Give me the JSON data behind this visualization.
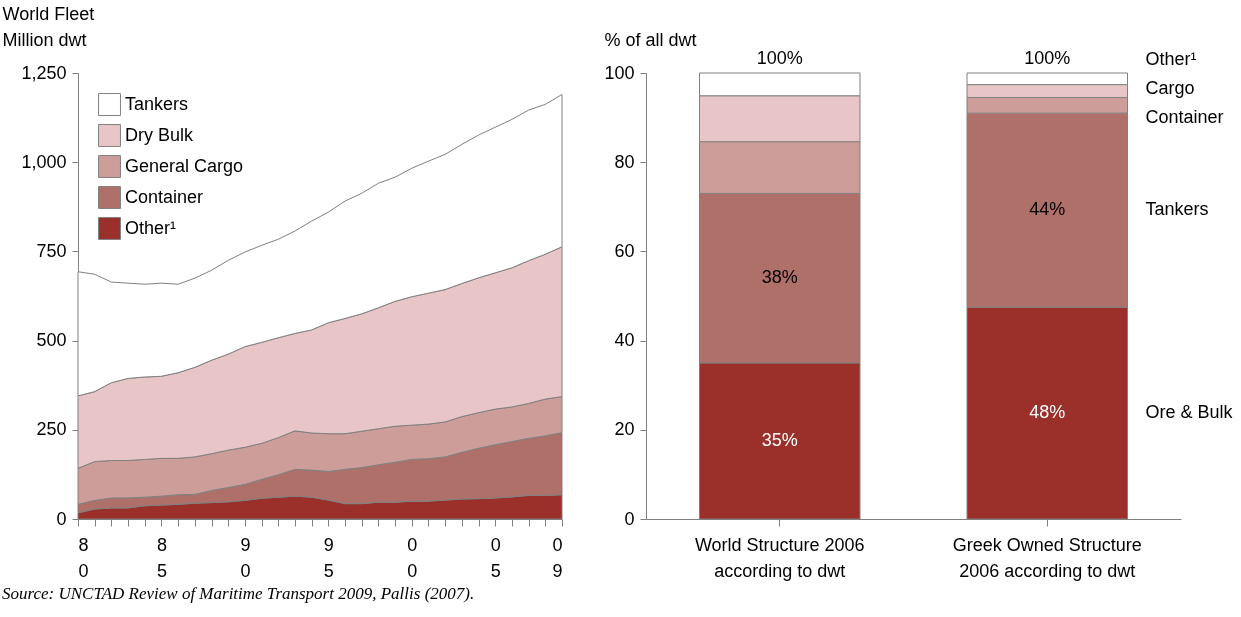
{
  "chart_data": [
    {
      "type": "area",
      "stacked": true,
      "ylabel": "World Fleet\nMillion dwt",
      "legend": "top left",
      "grid": false,
      "categories": [
        "8\n0",
        null,
        null,
        null,
        null,
        "8\n5",
        null,
        null,
        null,
        null,
        "9\n0",
        null,
        null,
        null,
        null,
        "9\n5",
        null,
        null,
        null,
        null,
        "0\n0",
        null,
        null,
        null,
        null,
        "0\n5",
        null,
        null,
        null,
        "0\n9"
      ],
      "ylim": [
        0,
        1250
      ],
      "yticks": [
        0,
        250,
        500,
        750,
        {
          "value": 1000,
          "label": "1,000"
        },
        {
          "value": 1250,
          "label": "1,250"
        }
      ],
      "series": [
        {
          "name": "Other¹",
          "color": "#9a3029",
          "values": [
            17,
            28,
            31,
            31,
            37,
            39,
            41,
            44,
            46,
            48,
            52,
            58,
            61,
            64,
            61,
            53,
            43,
            43,
            47,
            47,
            50,
            50,
            53,
            56,
            57,
            59,
            62,
            66,
            66,
            68
          ]
        },
        {
          "name": "Container",
          "color": "#b0706a",
          "values": [
            24,
            24,
            28,
            28,
            24,
            25,
            27,
            25,
            34,
            40,
            45,
            53,
            63,
            75,
            76,
            80,
            96,
            101,
            105,
            112,
            117,
            119,
            121,
            131,
            141,
            149,
            155,
            160,
            167,
            174
          ]
        },
        {
          "name": "General Cargo",
          "color": "#cd9d9a",
          "values": [
            101,
            109,
            105,
            105,
            106,
            106,
            102,
            105,
            103,
            105,
            104,
            101,
            104,
            108,
            104,
            106,
            100,
            102,
            101,
            101,
            96,
            97,
            98,
            100,
            100,
            100,
            97,
            98,
            103,
            101
          ]
        },
        {
          "name": "Dry Bulk",
          "color": "#e8c6c8",
          "values": [
            203,
            196,
            218,
            230,
            231,
            230,
            240,
            251,
            262,
            269,
            282,
            283,
            280,
            273,
            289,
            311,
            323,
            329,
            339,
            350,
            360,
            367,
            371,
            373,
            378,
            382,
            390,
            400,
            406,
            420
          ]
        },
        {
          "name": "Tankers",
          "color": "#ffffff",
          "values": [
            348,
            329,
            282,
            267,
            260,
            261,
            248,
            250,
            252,
            263,
            265,
            272,
            276,
            287,
            305,
            310,
            329,
            338,
            349,
            348,
            360,
            370,
            379,
            390,
            400,
            408,
            416,
            422,
            420,
            427
          ]
        }
      ],
      "annotations": [
        "Source: UNCTAD Review of Maritime Transport 2009, Pallis (2007)."
      ]
    },
    {
      "type": "bar",
      "stacked": true,
      "ylabel": "% of all dwt",
      "grid": false,
      "legend": false,
      "categories": [
        "World Structure 2006 according to dwt",
        "Greek Owned Structure 2006 according to dwt"
      ],
      "ylim": [
        0,
        100
      ],
      "yticks": [
        0,
        20,
        40,
        60,
        80,
        100
      ],
      "series": [
        {
          "name": "Ore & Bulk",
          "color": "#9a3029",
          "values": [
            35,
            47.5
          ],
          "value_labels": [
            "35%",
            "48%"
          ]
        },
        {
          "name": "Tankers",
          "color": "#b0706a",
          "values": [
            38,
            43.5
          ],
          "value_labels": [
            "38%",
            "44%"
          ]
        },
        {
          "name": "Container",
          "color": "#cd9d9a",
          "values": [
            11.6,
            3.5
          ]
        },
        {
          "name": "Cargo",
          "color": "#e8c6c8",
          "values": [
            10.3,
            2.9
          ]
        },
        {
          "name": "Other¹",
          "color": "#ffffff",
          "values": [
            5.1,
            2.6
          ]
        }
      ],
      "totals": [
        "100%",
        "100%"
      ]
    }
  ]
}
